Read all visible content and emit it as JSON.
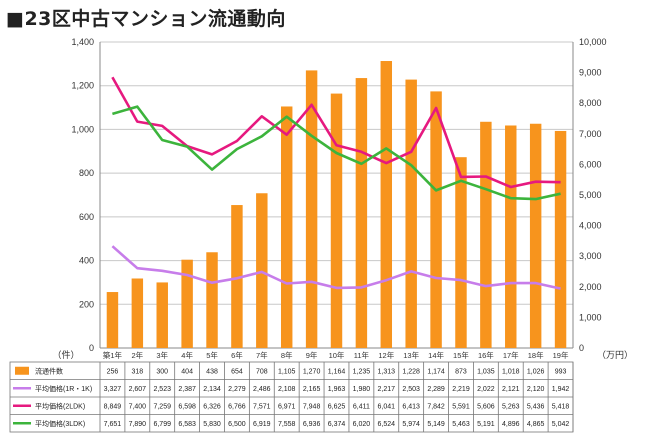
{
  "title": "■23区中古マンション流通動向",
  "chart_data": {
    "type": "bar",
    "categories": [
      "築1年",
      "2年",
      "3年",
      "4年",
      "5年",
      "6年",
      "7年",
      "8年",
      "9年",
      "10年",
      "11年",
      "12年",
      "13年",
      "14年",
      "15年",
      "16年",
      "17年",
      "18年",
      "19年"
    ],
    "y_left": {
      "unit": "（件）",
      "ylim": [
        0,
        1400
      ],
      "ticks": [
        "0",
        "200",
        "400",
        "600",
        "800",
        "1,000",
        "1,200",
        "1,400"
      ]
    },
    "y_right": {
      "unit": "（万円）",
      "ylim": [
        0,
        10000
      ],
      "ticks": [
        "0",
        "1,000",
        "2,000",
        "3,000",
        "4,000",
        "5,000",
        "6,000",
        "7,000",
        "8,000",
        "9,000",
        "10,000"
      ]
    },
    "grid": true,
    "bar_series": {
      "name": "流通件数",
      "color": "#f7941d",
      "axis": "left",
      "values": [
        256,
        318,
        300,
        404,
        438,
        654,
        708,
        1105,
        1270,
        1164,
        1235,
        1313,
        1228,
        1174,
        873,
        1035,
        1018,
        1026,
        993
      ]
    },
    "line_series": [
      {
        "name": "平均価格(1R・1K)",
        "color": "#c77dea",
        "axis": "right",
        "values": [
          3327,
          2607,
          2523,
          2387,
          2134,
          2279,
          2486,
          2108,
          2165,
          1963,
          1980,
          2217,
          2503,
          2289,
          2219,
          2022,
          2121,
          2120,
          1942
        ]
      },
      {
        "name": "平均価格(2LDK)",
        "color": "#e6197f",
        "axis": "right",
        "values": [
          8849,
          7400,
          7259,
          6598,
          6326,
          6766,
          7571,
          6971,
          7948,
          6625,
          6411,
          6041,
          6413,
          7842,
          5591,
          5606,
          5263,
          5436,
          5418
        ]
      },
      {
        "name": "平均価格(3LDK)",
        "color": "#3cb43c",
        "axis": "right",
        "values": [
          7651,
          7890,
          6799,
          6583,
          5830,
          6500,
          6919,
          7558,
          6936,
          6374,
          6020,
          6524,
          5974,
          5149,
          5463,
          5191,
          4896,
          4865,
          5042
        ]
      }
    ],
    "table": {
      "rows": [
        {
          "label": "流通件数",
          "cells": [
            "256",
            "318",
            "300",
            "404",
            "438",
            "654",
            "708",
            "1,105",
            "1,270",
            "1,164",
            "1,235",
            "1,313",
            "1,228",
            "1,174",
            "873",
            "1,035",
            "1,018",
            "1,026",
            "993"
          ]
        },
        {
          "label": "平均価格(1R・1K)",
          "cells": [
            "3,327",
            "2,607",
            "2,523",
            "2,387",
            "2,134",
            "2,279",
            "2,486",
            "2,108",
            "2,165",
            "1,963",
            "1,980",
            "2,217",
            "2,503",
            "2,289",
            "2,219",
            "2,022",
            "2,121",
            "2,120",
            "1,942"
          ]
        },
        {
          "label": "平均価格(2LDK)",
          "cells": [
            "8,849",
            "7,400",
            "7,259",
            "6,598",
            "6,326",
            "6,766",
            "7,571",
            "6,971",
            "7,948",
            "6,625",
            "6,411",
            "6,041",
            "6,413",
            "7,842",
            "5,591",
            "5,606",
            "5,263",
            "5,436",
            "5,418"
          ]
        },
        {
          "label": "平均価格(3LDK)",
          "cells": [
            "7,651",
            "7,890",
            "6,799",
            "6,583",
            "5,830",
            "6,500",
            "6,919",
            "7,558",
            "6,936",
            "6,374",
            "6,020",
            "6,524",
            "5,974",
            "5,149",
            "5,463",
            "5,191",
            "4,896",
            "4,865",
            "5,042"
          ]
        }
      ]
    }
  }
}
